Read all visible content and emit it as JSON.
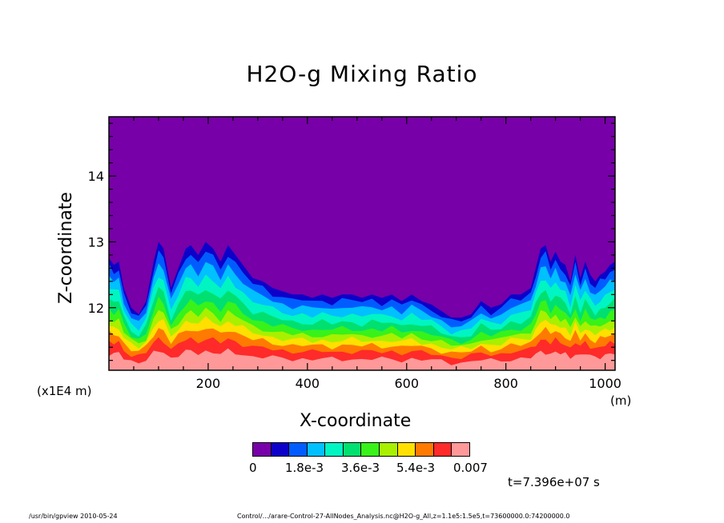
{
  "chart_data": {
    "type": "heatmap",
    "title": "H2O-g Mixing Ratio",
    "xlabel": "X-coordinate",
    "ylabel": "Z-coordinate",
    "x_unit": "(m)",
    "y_unit": "(x1E4 m)",
    "xlim": [
      0,
      1020
    ],
    "ylim": [
      11.05,
      14.9
    ],
    "x_ticks": [
      "200",
      "400",
      "600",
      "800",
      "1000"
    ],
    "x_tick_values": [
      200,
      400,
      600,
      800,
      1000
    ],
    "y_ticks": [
      "12",
      "13",
      "14"
    ],
    "y_tick_values": [
      12,
      13,
      14
    ],
    "background_color": "#7700a8",
    "moisture_top_profile": {
      "x": [
        0,
        10,
        20,
        30,
        45,
        60,
        75,
        90,
        100,
        110,
        125,
        140,
        155,
        165,
        180,
        195,
        210,
        225,
        240,
        255,
        270,
        290,
        310,
        330,
        350,
        370,
        390,
        410,
        430,
        450,
        470,
        490,
        510,
        530,
        550,
        570,
        590,
        610,
        630,
        650,
        670,
        690,
        710,
        730,
        750,
        770,
        790,
        810,
        830,
        850,
        860,
        870,
        880,
        890,
        900,
        910,
        920,
        930,
        940,
        950,
        960,
        970,
        980,
        990,
        1000,
        1010,
        1020
      ],
      "z": [
        12.75,
        12.65,
        12.7,
        12.3,
        12.0,
        11.9,
        12.1,
        12.7,
        13.0,
        12.9,
        12.3,
        12.6,
        12.9,
        12.95,
        12.8,
        13.0,
        12.9,
        12.7,
        12.95,
        12.8,
        12.65,
        12.45,
        12.4,
        12.3,
        12.25,
        12.2,
        12.2,
        12.15,
        12.2,
        12.15,
        12.2,
        12.2,
        12.15,
        12.2,
        12.15,
        12.2,
        12.1,
        12.2,
        12.1,
        12.05,
        11.95,
        11.85,
        11.85,
        11.9,
        12.1,
        12.0,
        12.05,
        12.2,
        12.2,
        12.3,
        12.6,
        12.9,
        12.95,
        12.7,
        12.85,
        12.7,
        12.65,
        12.4,
        12.8,
        12.45,
        12.7,
        12.5,
        12.4,
        12.5,
        12.55,
        12.65,
        12.7
      ]
    },
    "colorbar": {
      "colors": [
        "#7700a8",
        "#0d00c9",
        "#005cff",
        "#00c0ff",
        "#00f5c2",
        "#00e070",
        "#38f21a",
        "#a8f000",
        "#ffe000",
        "#ff7a00",
        "#ff2a2a",
        "#ff9999"
      ],
      "tick_labels": [
        "0",
        "1.8e-3",
        "3.6e-3",
        "5.4e-3",
        "0.007"
      ]
    },
    "time_label": "t=7.396e+07 s"
  },
  "footer": {
    "program": "/usr/bin/gpview   2010-05-24",
    "source": "Control/.../arare-Control-27-AllNodes_Analysis.nc@H2O-g_All,z=1.1e5:1.5e5,t=73600000.0:74200000.0"
  }
}
